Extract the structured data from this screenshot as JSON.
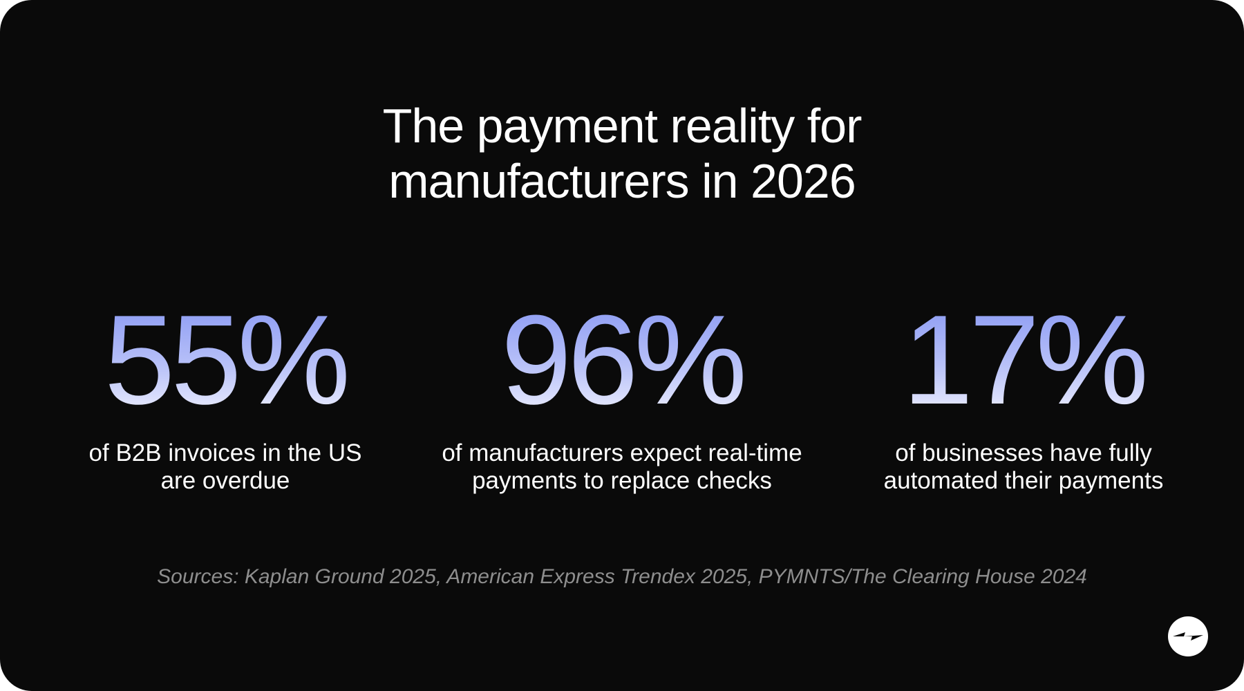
{
  "title": "The payment reality for manufacturers in 2026",
  "stats": [
    {
      "value": "55%",
      "description": "of B2B invoices in the US are overdue"
    },
    {
      "value": "96%",
      "description": "of manufacturers expect real-time payments to replace checks"
    },
    {
      "value": "17%",
      "description": "of businesses have fully automated their payments"
    }
  ],
  "sources": "Sources: Kaplan Ground 2025, American Express Trendex 2025, PYMNTS/The Clearing House 2024"
}
